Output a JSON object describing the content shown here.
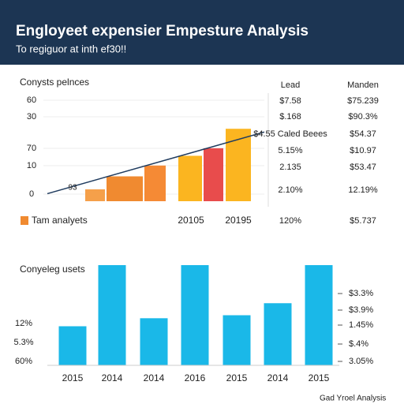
{
  "header": {
    "title": "Engloyeet expensier Empesture Analysis",
    "subtitle": "To regiguor at inth ef30!!"
  },
  "chart_data": [
    {
      "type": "bar",
      "title": "Conysts pelnces",
      "y_labels": [
        "60",
        "30",
        "70",
        "10",
        "0"
      ],
      "ylim": [
        0,
        100
      ],
      "values": [
        11,
        23,
        23,
        33,
        42,
        49,
        67
      ],
      "colors": [
        "#f5a04a",
        "#f08a30",
        "#f08a30",
        "#f58a35",
        "#fbb520",
        "#e84c4c",
        "#fbb520"
      ],
      "trend": {
        "color": "#1f3b5e",
        "values": [
          7,
          64
        ]
      },
      "annotation": "93",
      "x_labels": [
        "20105",
        "20195"
      ],
      "legend": {
        "name": "Tam analyets",
        "color": "#f08a30"
      }
    },
    {
      "type": "bar",
      "title": "Conyeleg usets",
      "categories": [
        "2015",
        "2014",
        "2014",
        "2016",
        "2015",
        "2014",
        "2015"
      ],
      "ylim": [
        0,
        100
      ],
      "values": [
        39,
        100,
        47,
        100,
        50,
        62,
        100
      ],
      "color": "#1ab8e8",
      "left_labels": [
        "12%",
        "5.3%",
        "60%"
      ],
      "right_labels": [
        "$3.3%",
        "$3.9%",
        "1.45%",
        "$.4%",
        "3.05%"
      ]
    }
  ],
  "table": {
    "headers": [
      "Lead",
      "Manden"
    ],
    "rows": [
      [
        "$7.58",
        "$75.239"
      ],
      [
        "$.168",
        "$90.3%"
      ],
      [
        "$4.55 Caled Beees",
        "$54.37"
      ],
      [
        "5.15%",
        "$10.97"
      ],
      [
        "2.135",
        "$53.47"
      ],
      [
        "2.10%",
        "12.19%"
      ],
      [
        "120%",
        "$5.737"
      ]
    ]
  },
  "footer": "Gad Yroel Analysis"
}
